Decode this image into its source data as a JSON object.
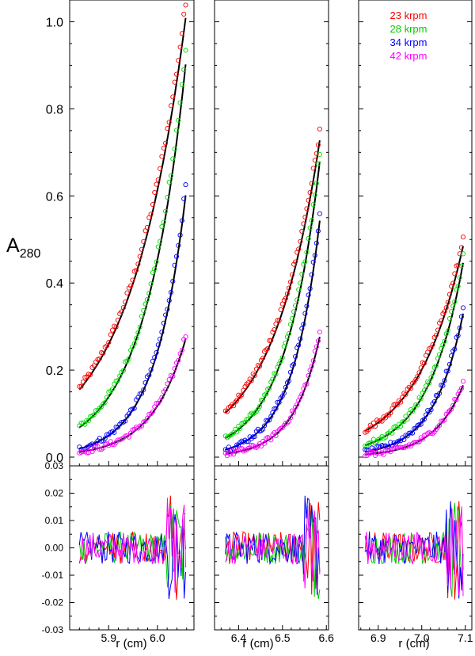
{
  "chart_data": {
    "type": "scatter",
    "ylabel_main": "A",
    "ylabel_sub": "280",
    "xlabel": "r (cm)",
    "top_ylim": [
      -0.02,
      1.05
    ],
    "top_yticks": [
      0.0,
      0.2,
      0.4,
      0.6,
      0.8,
      1.0
    ],
    "top_ytick_labels": [
      "0.0",
      "0.2",
      "0.4",
      "0.6",
      "0.8",
      "1.0"
    ],
    "res_ylim": [
      -0.03,
      0.03
    ],
    "res_yticks": [
      -0.03,
      -0.02,
      -0.01,
      0.0,
      0.01,
      0.02,
      0.03
    ],
    "res_ytick_labels": [
      "-0.03",
      "-0.02",
      "-0.01",
      "0.00",
      "0.01",
      "0.02",
      "0.03"
    ],
    "legend": [
      {
        "label": "23 krpm",
        "color": "#ff0000"
      },
      {
        "label": "28 krpm",
        "color": "#00dd00"
      },
      {
        "label": "34 krpm",
        "color": "#0000ff"
      },
      {
        "label": "42 krpm",
        "color": "#ff00ff"
      }
    ],
    "panels": [
      {
        "name": "cell-1",
        "xlim": [
          5.82,
          6.075
        ],
        "r_start": 5.84,
        "r_end": 6.058,
        "xticks": [
          5.9,
          6.0
        ],
        "xtick_labels": [
          "5.9",
          "6.0"
        ],
        "series": [
          {
            "speed": "23 krpm",
            "a_start": 0.16,
            "a_end": 1.04
          },
          {
            "speed": "28 krpm",
            "a_start": 0.07,
            "a_end": 0.93
          },
          {
            "speed": "34 krpm",
            "a_start": 0.02,
            "a_end": 0.62
          },
          {
            "speed": "42 krpm",
            "a_start": 0.012,
            "a_end": 0.28
          }
        ]
      },
      {
        "name": "cell-2",
        "xlim": [
          6.345,
          6.605
        ],
        "r_start": 6.37,
        "r_end": 6.585,
        "xticks": [
          6.4,
          6.5,
          6.6
        ],
        "xtick_labels": [
          "6.4",
          "6.5",
          "6.6"
        ],
        "series": [
          {
            "speed": "23 krpm",
            "a_start": 0.105,
            "a_end": 0.75
          },
          {
            "speed": "28 krpm",
            "a_start": 0.045,
            "a_end": 0.7
          },
          {
            "speed": "34 krpm",
            "a_start": 0.018,
            "a_end": 0.56
          },
          {
            "speed": "42 krpm",
            "a_start": 0.008,
            "a_end": 0.285
          }
        ]
      },
      {
        "name": "cell-3",
        "xlim": [
          6.855,
          7.115
        ],
        "r_start": 6.87,
        "r_end": 7.095,
        "xticks": [
          6.9,
          7.0,
          7.1
        ],
        "xtick_labels": [
          "6.9",
          "7.0",
          "7.1"
        ],
        "series": [
          {
            "speed": "23 krpm",
            "a_start": 0.062,
            "a_end": 0.5
          },
          {
            "speed": "28 krpm",
            "a_start": 0.028,
            "a_end": 0.46
          },
          {
            "speed": "34 krpm",
            "a_start": 0.012,
            "a_end": 0.34
          },
          {
            "speed": "42 krpm",
            "a_start": 0.006,
            "a_end": 0.17
          }
        ]
      }
    ]
  }
}
